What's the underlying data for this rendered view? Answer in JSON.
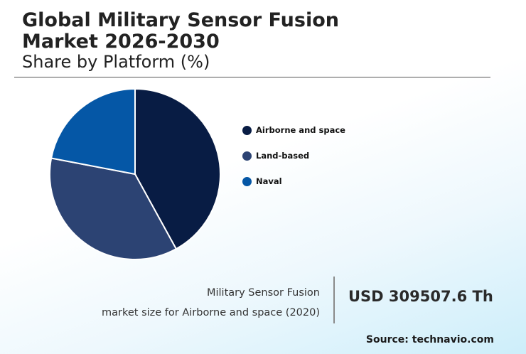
{
  "header": {
    "title_line1": "Global Military Sensor Fusion",
    "title_line2": "Market 2026-2030",
    "subtitle": "Share by Platform (%)"
  },
  "chart_data": {
    "type": "pie",
    "categories": [
      "Airborne and space",
      "Land-based",
      "Naval"
    ],
    "values": [
      42,
      36,
      22
    ],
    "colors": [
      "#081c44",
      "#2c4373",
      "#0557a6"
    ],
    "legend_position": "right"
  },
  "stat": {
    "description_line1": "Military Sensor Fusion",
    "description_line2": "market size for Airborne and space (2020)",
    "value": "USD 309507.6 Th"
  },
  "source": "Source: technavio.com"
}
